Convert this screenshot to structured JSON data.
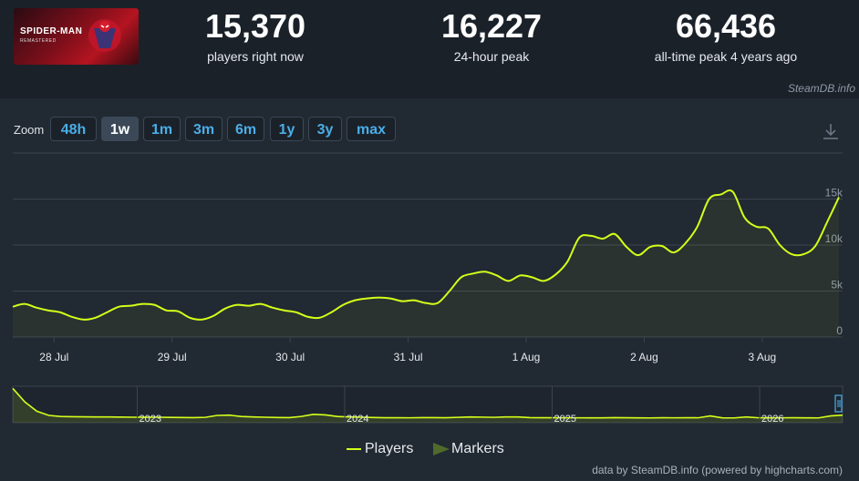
{
  "game": {
    "title": "SPIDER-MAN",
    "subtitle": "REMASTERED"
  },
  "stats": [
    {
      "value": "15,370",
      "label": "players right now"
    },
    {
      "value": "16,227",
      "label": "24-hour peak"
    },
    {
      "value": "66,436",
      "label": "all-time peak 4 years ago"
    }
  ],
  "source": "SteamDB.info",
  "zoom": {
    "label": "Zoom",
    "buttons": [
      "48h",
      "1w",
      "1m",
      "3m",
      "6m",
      "1y",
      "3y",
      "max"
    ],
    "active": "1w"
  },
  "legend": {
    "players": "Players",
    "markers": "Markers"
  },
  "credit": "data by SteamDB.info (powered by highcharts.com)",
  "colors": {
    "line": "#d4ff1a",
    "marker": "#4f6a2a",
    "accent": "#4aaee8"
  },
  "chart_data": {
    "type": "line",
    "series": [
      {
        "name": "Players",
        "x": [
          0,
          0.1,
          0.2,
          0.3,
          0.4,
          0.5,
          0.6,
          0.7,
          0.8,
          0.9,
          1,
          1.1,
          1.2,
          1.3,
          1.4,
          1.5,
          1.6,
          1.7,
          1.8,
          1.9,
          2,
          2.1,
          2.2,
          2.3,
          2.4,
          2.5,
          2.6,
          2.7,
          2.8,
          2.9,
          3,
          3.1,
          3.2,
          3.3,
          3.4,
          3.5,
          3.6,
          3.7,
          3.8,
          3.9,
          4,
          4.1,
          4.2,
          4.3,
          4.4,
          4.5,
          4.6,
          4.7,
          4.8,
          4.9,
          5,
          5.1,
          5.2,
          5.3,
          5.4,
          5.5,
          5.6,
          5.7,
          5.8,
          5.9,
          6,
          6.1,
          6.2,
          6.3,
          6.4,
          6.5,
          6.6,
          6.7,
          6.8,
          6.9,
          7
        ],
        "values": [
          3300,
          3600,
          3200,
          2900,
          2700,
          2200,
          1900,
          2100,
          2700,
          3300,
          3400,
          3600,
          3500,
          2900,
          2800,
          2100,
          1900,
          2300,
          3100,
          3500,
          3400,
          3600,
          3200,
          2900,
          2700,
          2200,
          2100,
          2700,
          3500,
          4000,
          4200,
          4300,
          4200,
          3900,
          4000,
          3700,
          3700,
          5000,
          6500,
          6900,
          7100,
          6700,
          6100,
          6700,
          6500,
          6100,
          6800,
          8200,
          10800,
          11000,
          10700,
          11200,
          9800,
          8900,
          9800,
          9900,
          9200,
          10200,
          12000,
          15000,
          15500,
          15800,
          13000,
          12000,
          11800,
          10000,
          9000,
          9000,
          9900,
          12500,
          15200
        ]
      }
    ],
    "x_tick_labels": [
      "28 Jul",
      "29 Jul",
      "30 Jul",
      "31 Jul",
      "1 Aug",
      "2 Aug",
      "3 Aug"
    ],
    "x_tick_values": [
      0.35,
      1.35,
      2.35,
      3.35,
      4.35,
      5.35,
      6.35
    ],
    "y_tick_labels": [
      "0",
      "5k",
      "10k",
      "15k"
    ],
    "y_tick_values": [
      0,
      5000,
      10000,
      15000
    ],
    "ylim": [
      0,
      20000
    ],
    "xlim": [
      0,
      7
    ],
    "grid": true,
    "navigator": {
      "year_labels": [
        "2023",
        "2024",
        "2025",
        "2026"
      ],
      "year_positions": [
        0.15,
        0.4,
        0.65,
        0.9
      ],
      "values": [
        66000,
        40000,
        22000,
        14000,
        12000,
        11500,
        11200,
        11000,
        11000,
        10800,
        10500,
        10400,
        10500,
        10200,
        10000,
        9800,
        10300,
        14000,
        14500,
        12000,
        11000,
        10500,
        10000,
        9800,
        12000,
        16000,
        15000,
        12000,
        11000,
        10500,
        10000,
        9500,
        9600,
        9400,
        9700,
        9800,
        9500,
        10300,
        11000,
        10700,
        10300,
        11000,
        11000,
        9800,
        9500,
        9600,
        9400,
        9400,
        9300,
        9300,
        9800,
        9500,
        9300,
        9200,
        9600,
        9400,
        9600,
        9400,
        13000,
        9300,
        9200,
        11000,
        9400,
        9300,
        9400,
        9600,
        9300,
        9200,
        13000,
        14500
      ],
      "ymax": 70000
    }
  }
}
